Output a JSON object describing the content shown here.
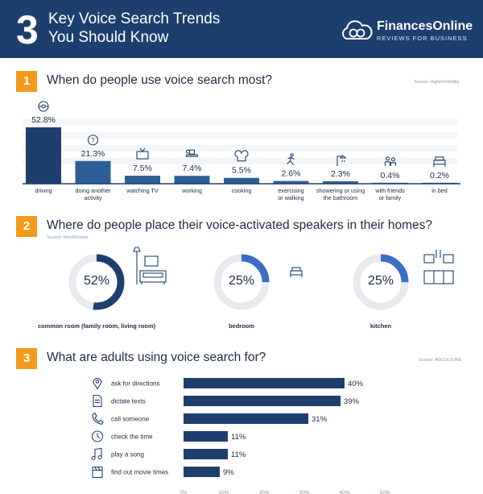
{
  "header": {
    "number": "3",
    "title_line1": "Key Voice Search Trends",
    "title_line2": "You Should Know",
    "brand_name": "FinancesOnline",
    "brand_tag": "REVIEWS FOR BUSINESS"
  },
  "section1": {
    "number": "1",
    "title": "When do people use voice search most?",
    "source": "Source: HigherVisibility"
  },
  "section2": {
    "number": "2",
    "title": "Where do people place their voice-activated speakers in their homes?",
    "source": "Source: WordStream"
  },
  "section3": {
    "number": "3",
    "title": "What are adults using voice search for?",
    "source": "Source: ADCULTURE"
  },
  "colors": {
    "navy": "#1e3f6e",
    "accent_orange": "#f39a1d",
    "ring_blue": "#3a6fc4",
    "ring_gray": "#e6e9ee"
  },
  "chart_data": [
    {
      "type": "bar",
      "orientation": "vertical",
      "categories": [
        "driving",
        "doing another activity",
        "watching TV",
        "working",
        "cooking",
        "exercising or walking",
        "showering or using the bathroom",
        "with friends or family",
        "in bed"
      ],
      "category_lines": [
        [
          "driving"
        ],
        [
          "doing another",
          "activity"
        ],
        [
          "watching TV"
        ],
        [
          "working"
        ],
        [
          "cooking"
        ],
        [
          "exercising",
          "or walking"
        ],
        [
          "showering or using",
          "the bathroom"
        ],
        [
          "with friends",
          "or family"
        ],
        [
          "in bed"
        ]
      ],
      "icons": [
        "steering-wheel-icon",
        "question-icon",
        "tv-icon",
        "desk-icon",
        "chef-hat-icon",
        "runner-icon",
        "shower-icon",
        "people-icon",
        "bed-icon"
      ],
      "values": [
        52.8,
        21.3,
        7.5,
        7.4,
        5.5,
        2.6,
        2.3,
        0.4,
        0.2
      ],
      "labels": [
        "52.8%",
        "21.3%",
        "7.5%",
        "7.4%",
        "5.5%",
        "2.6%",
        "2.3%",
        "0.4%",
        "0.2%"
      ],
      "ylim": [
        0,
        60
      ]
    },
    {
      "type": "pie",
      "categories": [
        "common room (family room, living room)",
        "bedroom",
        "kitchen"
      ],
      "values": [
        52,
        25,
        25
      ],
      "labels": [
        "52%",
        "25%",
        "25%"
      ],
      "icons": [
        "sofa-icon",
        "bed-icon",
        "kitchen-icon"
      ]
    },
    {
      "type": "bar",
      "orientation": "horizontal",
      "categories": [
        "ask for directions",
        "dictate texts",
        "call someone",
        "check the time",
        "play a song",
        "find out movie times"
      ],
      "icons": [
        "map-pin-icon",
        "document-icon",
        "phone-icon",
        "clock-icon",
        "music-icon",
        "clapperboard-icon"
      ],
      "values": [
        40,
        39,
        31,
        11,
        11,
        9
      ],
      "labels": [
        "40%",
        "39%",
        "31%",
        "11%",
        "11%",
        "9%"
      ],
      "xticks": [
        "0%",
        "10%",
        "20%",
        "30%",
        "40%",
        "50%"
      ],
      "xlim": [
        0,
        50
      ]
    }
  ]
}
